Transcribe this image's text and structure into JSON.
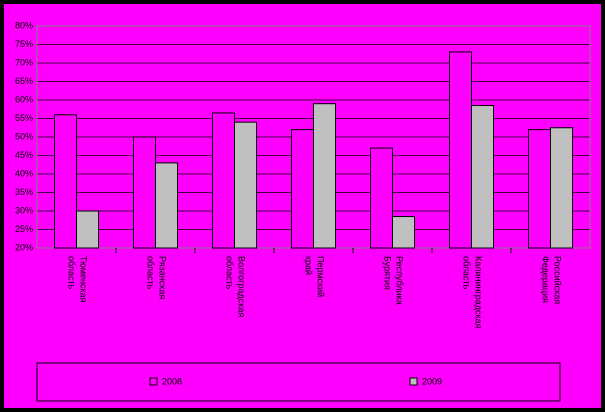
{
  "chart_data": {
    "type": "bar",
    "categories": [
      "Тюменская область",
      "Рязанская область",
      "Волгоградская область",
      "Пермский край",
      "Республика Бурятия",
      "Калининградская область",
      "Российская Федерация"
    ],
    "series": [
      {
        "name": "2008",
        "color": "#ff00ff",
        "values": [
          56,
          50,
          56.5,
          52,
          47,
          73,
          52
        ]
      },
      {
        "name": "2009",
        "color": "#c0c0c0",
        "values": [
          30,
          43,
          54,
          59,
          28.5,
          58.5,
          52.5
        ]
      }
    ],
    "ylim": [
      20,
      80
    ],
    "yticks": [
      {
        "value": 20,
        "label": "20%"
      },
      {
        "value": 25,
        "label": "25%"
      },
      {
        "value": 30,
        "label": "30%"
      },
      {
        "value": 35,
        "label": "35%"
      },
      {
        "value": 40,
        "label": "40%"
      },
      {
        "value": 45,
        "label": "45%"
      },
      {
        "value": 50,
        "label": "50%"
      },
      {
        "value": 55,
        "label": "55%"
      },
      {
        "value": 60,
        "label": "60%"
      },
      {
        "value": 65,
        "label": "65%"
      },
      {
        "value": 70,
        "label": "70%"
      },
      {
        "value": 75,
        "label": "75%"
      },
      {
        "value": 80,
        "label": "80%"
      }
    ],
    "grid": true
  }
}
